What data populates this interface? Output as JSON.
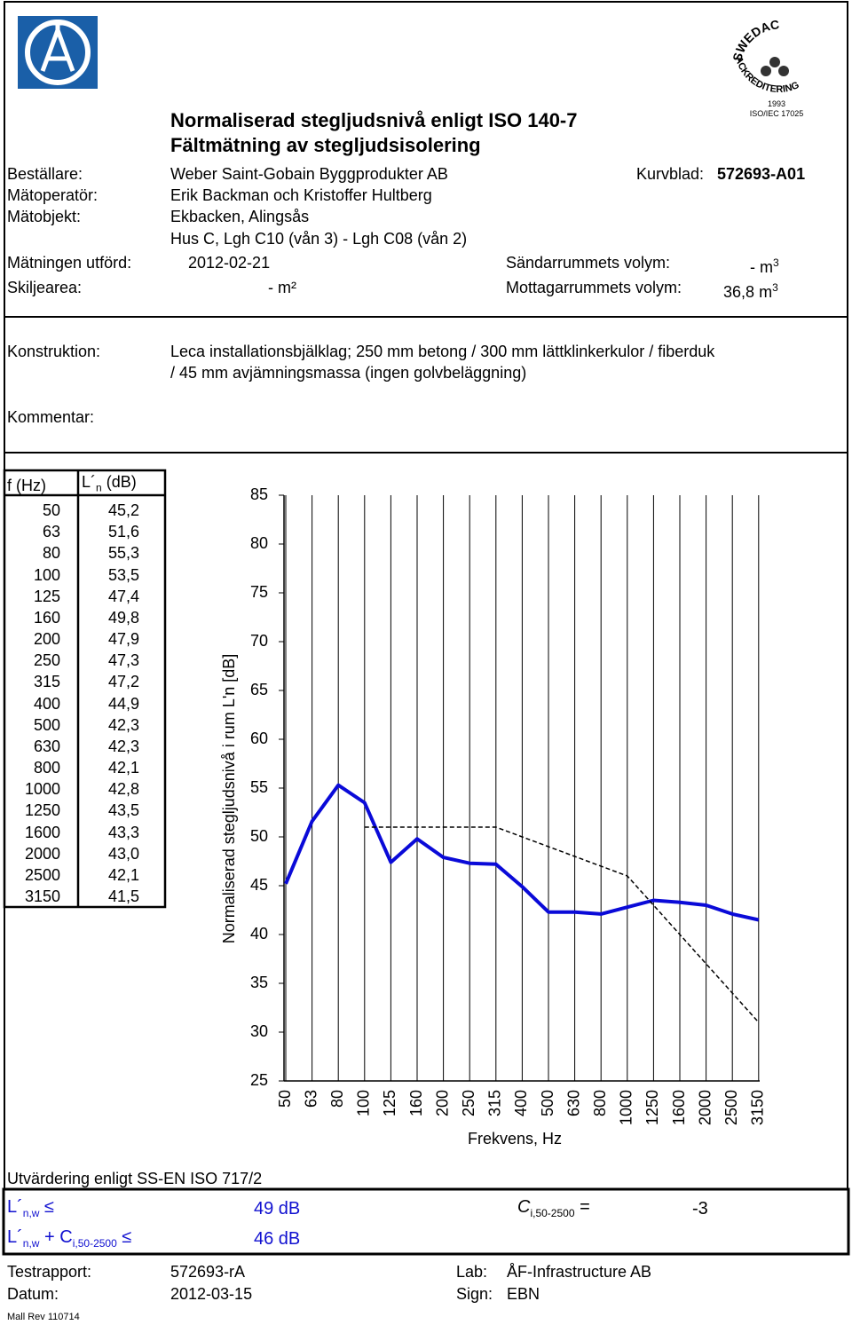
{
  "logos": {
    "swedac_top": "SWEDAC",
    "swedac_arc": "ACKREDITERING",
    "swedac_year": "1993",
    "swedac_std": "ISO/IEC 17025"
  },
  "header": {
    "title": "Normaliserad stegljudsnivå enligt ISO 140-7",
    "subtitle": "Fältmätning av stegljudsisolering",
    "client_label": "Beställare:",
    "client": "Weber Saint-Gobain Byggprodukter AB",
    "sheet_label": "Kurvblad:",
    "sheet": "572693-A01",
    "operator_label": "Mätoperatör:",
    "operator": "Erik Backman och Kristoffer Hultberg",
    "object_label": "Mätobjekt:",
    "object": "Ekbacken, Alingsås",
    "object_line2": "Hus C, Lgh C10 (vån 3) - Lgh C08 (vån 2)",
    "date_label": "Mätningen utförd:",
    "date": "2012-02-21",
    "send_label": "Sändarrummets volym:",
    "send_value": "- m",
    "send_sup": "3",
    "area_label": "Skiljearea:",
    "area_value": "- m²",
    "recv_label": "Mottagarrummets volym:",
    "recv_value": "36,8",
    "recv_unit": "m",
    "recv_sup": "3"
  },
  "construction": {
    "label": "Konstruktion:",
    "line1": "Leca installationsbjälklag; 250 mm betong / 300 mm lättklinkerkulor / fiberduk",
    "line2": "/ 45 mm avjämningsmassa (ingen golvbeläggning)",
    "comment_label": "Kommentar:"
  },
  "table": {
    "col1": "f (Hz)",
    "col2_main": "L´",
    "col2_sub": "n",
    "col2_unit": "(dB)",
    "freq": [
      "50",
      "63",
      "80",
      "100",
      "125",
      "160",
      "200",
      "250",
      "315",
      "400",
      "500",
      "630",
      "800",
      "1000",
      "1250",
      "1600",
      "2000",
      "2500",
      "3150"
    ],
    "level": [
      "45,2",
      "51,6",
      "55,3",
      "53,5",
      "47,4",
      "49,8",
      "47,9",
      "47,3",
      "47,2",
      "44,9",
      "42,3",
      "42,3",
      "42,1",
      "42,8",
      "43,5",
      "43,3",
      "43,0",
      "42,1",
      "41,5"
    ]
  },
  "chart_data": {
    "type": "line",
    "y_label": "Normaliserad stegljudsnivå i rum L'n [dB]",
    "x_label": "Frekvens, Hz",
    "categories": [
      "50",
      "63",
      "80",
      "100",
      "125",
      "160",
      "200",
      "250",
      "315",
      "400",
      "500",
      "630",
      "800",
      "1000",
      "1250",
      "1600",
      "2000",
      "2500",
      "3150"
    ],
    "ylim": [
      25,
      85
    ],
    "yticks": [
      25,
      30,
      35,
      40,
      45,
      50,
      55,
      60,
      65,
      70,
      75,
      80,
      85
    ],
    "grid": true,
    "series": [
      {
        "color": "#0a0ad8",
        "dashed": false,
        "values": [
          45.2,
          51.6,
          55.3,
          53.5,
          47.4,
          49.8,
          47.9,
          47.3,
          47.2,
          44.9,
          42.3,
          42.3,
          42.1,
          42.8,
          43.5,
          43.3,
          43.0,
          42.1,
          41.5
        ]
      },
      {
        "color": "#000000",
        "dashed": true,
        "values": [
          null,
          null,
          null,
          51,
          51,
          51,
          51,
          51,
          51,
          50,
          49,
          48,
          47,
          46,
          43,
          40,
          37,
          34,
          31
        ]
      }
    ]
  },
  "evaluation": {
    "title": "Utvärdering enligt SS-EN ISO 717/2",
    "lnw_main": "L´",
    "lnw_sub": "n,w",
    "lnw_sym": "≤",
    "lnw_value": "49 dB",
    "sum_main": "L´",
    "sum_sub1": "n,w",
    "sum_plus": "+ C",
    "sum_sub2": "i,50-2500",
    "sum_sym": "≤",
    "sum_value": "46 dB",
    "c_main": "C",
    "c_sub": "i,50-2500",
    "c_eq": "=",
    "c_value": "-3"
  },
  "footer": {
    "report_label": "Testrapport:",
    "report": "572693-rA",
    "lab_label": "Lab:",
    "lab": "ÅF-Infrastructure AB",
    "date_label": "Datum:",
    "date": "2012-03-15",
    "sign_label": "Sign:",
    "sign": "EBN",
    "rev": "Mall Rev 110714"
  }
}
